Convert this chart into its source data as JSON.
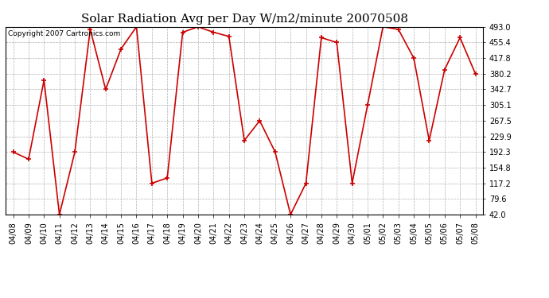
{
  "title": "Solar Radiation Avg per Day W/m2/minute 20070508",
  "copyright": "Copyright 2007 Cartronics.com",
  "dates": [
    "04/08",
    "04/09",
    "04/10",
    "04/11",
    "04/12",
    "04/13",
    "04/14",
    "04/15",
    "04/16",
    "04/17",
    "04/18",
    "04/19",
    "04/20",
    "04/21",
    "04/22",
    "04/23",
    "04/24",
    "04/25",
    "04/26",
    "04/27",
    "04/28",
    "04/29",
    "04/30",
    "05/01",
    "05/02",
    "05/03",
    "05/04",
    "05/05",
    "05/06",
    "05/07",
    "05/08"
  ],
  "values": [
    192.3,
    175.0,
    365.0,
    42.0,
    192.3,
    487.0,
    342.7,
    440.0,
    493.0,
    117.2,
    130.0,
    480.0,
    493.0,
    480.0,
    470.0,
    220.0,
    267.5,
    192.3,
    42.0,
    117.2,
    467.0,
    455.4,
    117.2,
    305.1,
    493.0,
    487.0,
    417.8,
    220.0,
    390.0,
    467.0,
    380.2
  ],
  "yticks": [
    42.0,
    79.6,
    117.2,
    154.8,
    192.3,
    229.9,
    267.5,
    305.1,
    342.7,
    380.2,
    417.8,
    455.4,
    493.0
  ],
  "line_color": "#cc0000",
  "marker_color": "#cc0000",
  "bg_color": "#ffffff",
  "grid_color": "#b0b0b0",
  "title_fontsize": 11,
  "copyright_fontsize": 6.5,
  "tick_fontsize": 7,
  "ylim": [
    42.0,
    493.0
  ]
}
